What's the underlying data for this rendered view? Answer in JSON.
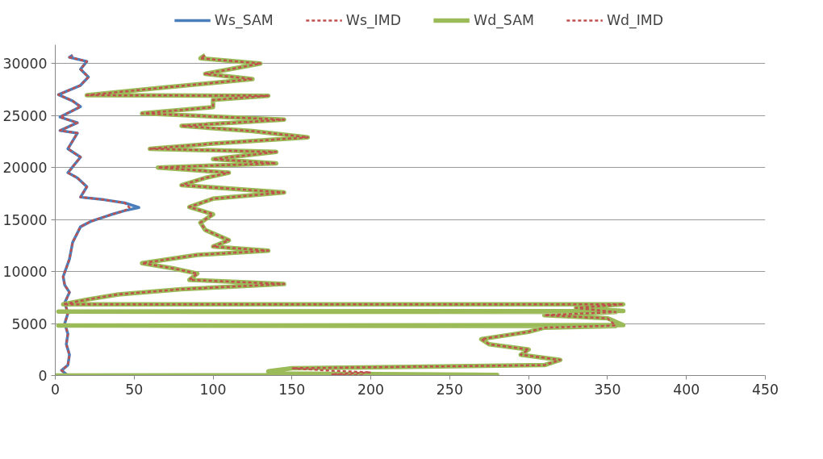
{
  "chart_data": {
    "type": "line",
    "xlim": [
      0,
      450
    ],
    "xticks": [
      0,
      50,
      100,
      150,
      200,
      250,
      300,
      350,
      400,
      450
    ],
    "ylim": [
      0,
      31800
    ],
    "yticks": [
      0,
      5000,
      10000,
      15000,
      20000,
      25000,
      30000
    ],
    "grid": "y",
    "legend": "top",
    "series": [
      {
        "name": "Ws_SAM",
        "color": "#4a7ebb",
        "line_style": "solid",
        "x": [
          8,
          4,
          8,
          9,
          7,
          8,
          6,
          8,
          6,
          9,
          6,
          5,
          9,
          11,
          16,
          23,
          35,
          44,
          53,
          44,
          31,
          16,
          20,
          14,
          8,
          16,
          8,
          14,
          3,
          14,
          3,
          16,
          11,
          2,
          16,
          21,
          16,
          20,
          9,
          11
        ],
        "values": [
          0,
          500,
          1000,
          2000,
          3000,
          4000,
          5000,
          6000,
          7000,
          8000,
          8700,
          9500,
          11200,
          12800,
          14300,
          14850,
          15450,
          15850,
          16150,
          16600,
          16900,
          17150,
          18150,
          19000,
          19500,
          21000,
          21800,
          23300,
          23550,
          24300,
          24850,
          25850,
          26400,
          27000,
          27900,
          28700,
          29450,
          30200,
          30600,
          30800
        ]
      },
      {
        "name": "Ws_IMD",
        "color": "#c0504d",
        "line_style": "dashed",
        "x": [
          8,
          4,
          8,
          9,
          7,
          8,
          6,
          8,
          6,
          9,
          6,
          5,
          9,
          11,
          16,
          23,
          35,
          44,
          47,
          44,
          31,
          16,
          20,
          14,
          8,
          16,
          8,
          14,
          3,
          14,
          3,
          16,
          11,
          2,
          16,
          21,
          16,
          20,
          9,
          11
        ],
        "values": [
          0,
          500,
          1000,
          2000,
          3000,
          4000,
          5000,
          6000,
          7000,
          8000,
          8700,
          9500,
          11200,
          12800,
          14300,
          14850,
          15450,
          15850,
          16150,
          16600,
          16900,
          17150,
          18150,
          19000,
          19500,
          21000,
          21800,
          23300,
          23550,
          24300,
          24850,
          25850,
          26400,
          27000,
          27900,
          28700,
          29450,
          30200,
          30600,
          30800
        ]
      },
      {
        "name": "Wd_SAM",
        "color": "#9bbb59",
        "line_style": "solid",
        "x": [
          0,
          280,
          140,
          135,
          150,
          310,
          320,
          295,
          300,
          275,
          270,
          300,
          310,
          355,
          2,
          360,
          350,
          310,
          355,
          2,
          360,
          330,
          360,
          5,
          20,
          40,
          80,
          145,
          85,
          90,
          75,
          55,
          90,
          135,
          100,
          110,
          95,
          92,
          100,
          85,
          100,
          145,
          80,
          95,
          110,
          65,
          140,
          100,
          140,
          60,
          100,
          160,
          125,
          80,
          145,
          55,
          100,
          100,
          135,
          20,
          70,
          125,
          95,
          130,
          92,
          95
        ],
        "values": [
          0,
          50,
          200,
          400,
          700,
          1000,
          1500,
          2000,
          2500,
          3000,
          3500,
          4200,
          4600,
          4750,
          4800,
          4850,
          5500,
          5800,
          6100,
          6150,
          6200,
          6500,
          6850,
          6850,
          7300,
          7800,
          8300,
          8800,
          9200,
          9800,
          10300,
          10800,
          11600,
          12000,
          12400,
          13000,
          14000,
          14700,
          15500,
          16200,
          17000,
          17600,
          18300,
          19000,
          19500,
          20000,
          20400,
          20800,
          21500,
          21800,
          22300,
          22900,
          23500,
          24000,
          24600,
          25200,
          25800,
          26500,
          26900,
          26950,
          27700,
          28500,
          29000,
          30000,
          30500,
          30800
        ]
      },
      {
        "name": "Wd_IMD",
        "color": "#c0504d",
        "line_style": "dashed",
        "x": [
          195,
          175,
          200,
          170,
          150,
          310,
          320,
          295,
          300,
          275,
          270,
          300,
          310,
          355,
          350,
          310,
          355,
          330,
          360,
          5,
          20,
          40,
          80,
          145,
          85,
          90,
          75,
          55,
          90,
          135,
          100,
          110,
          95,
          92,
          100,
          85,
          100,
          145,
          80,
          95,
          110,
          65,
          140,
          100,
          140,
          60,
          100,
          160,
          125,
          80,
          145,
          55,
          100,
          100,
          135,
          20,
          70,
          125,
          95,
          130,
          92,
          95
        ],
        "values": [
          0,
          100,
          300,
          500,
          700,
          1000,
          1500,
          2000,
          2500,
          3000,
          3500,
          4200,
          4600,
          4800,
          5500,
          5800,
          6100,
          6500,
          6850,
          6850,
          7300,
          7800,
          8300,
          8800,
          9200,
          9800,
          10300,
          10800,
          11600,
          12000,
          12400,
          13000,
          14000,
          14700,
          15500,
          16200,
          17000,
          17600,
          18300,
          19000,
          19500,
          20000,
          20400,
          20800,
          21500,
          21800,
          22300,
          22900,
          23500,
          24000,
          24600,
          25200,
          25800,
          26500,
          26900,
          26950,
          27700,
          28500,
          29000,
          30000,
          30500,
          30800
        ]
      }
    ]
  }
}
